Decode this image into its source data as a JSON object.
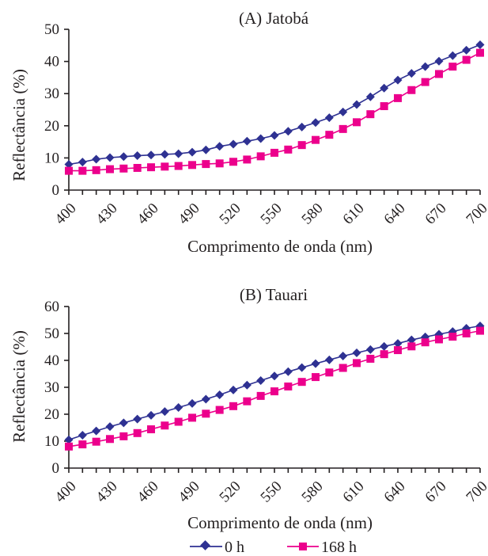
{
  "chart_data": [
    {
      "type": "line",
      "title": "(A) Jatobá",
      "xlabel": "Comprimento de onda (nm)",
      "ylabel": "Reflectância (%)",
      "xlim": [
        400,
        700
      ],
      "ylim": [
        0,
        50
      ],
      "xticks": [
        400,
        430,
        460,
        490,
        520,
        550,
        580,
        610,
        640,
        670,
        700
      ],
      "yticks": [
        0,
        10,
        20,
        30,
        40,
        50
      ],
      "grid": false,
      "x": [
        400,
        410,
        420,
        430,
        440,
        450,
        460,
        470,
        480,
        490,
        500,
        510,
        520,
        530,
        540,
        550,
        560,
        570,
        580,
        590,
        600,
        610,
        620,
        630,
        640,
        650,
        660,
        670,
        680,
        690,
        700
      ],
      "series": [
        {
          "name": "0 h",
          "color": "#2e3192",
          "marker": "diamond",
          "values": [
            8.0,
            8.7,
            9.6,
            10.1,
            10.4,
            10.7,
            10.9,
            11.1,
            11.3,
            11.8,
            12.5,
            13.6,
            14.3,
            15.2,
            16.0,
            17.0,
            18.3,
            19.6,
            21.0,
            22.5,
            24.3,
            26.6,
            29.0,
            31.7,
            34.2,
            36.3,
            38.4,
            40.1,
            41.8,
            43.5,
            45.2
          ]
        },
        {
          "name": "168 h",
          "color": "#ec008c",
          "marker": "square",
          "values": [
            6.0,
            6.0,
            6.2,
            6.5,
            6.7,
            6.9,
            7.1,
            7.3,
            7.5,
            7.8,
            8.1,
            8.3,
            8.8,
            9.5,
            10.5,
            11.6,
            12.6,
            14.0,
            15.6,
            17.2,
            19.0,
            21.1,
            23.6,
            26.1,
            28.6,
            31.1,
            33.6,
            36.1,
            38.4,
            40.5,
            42.7
          ]
        }
      ]
    },
    {
      "type": "line",
      "title": "(B) Tauari",
      "xlabel": "Comprimento de onda (nm)",
      "ylabel": "Reflectância (%)",
      "xlim": [
        400,
        700
      ],
      "ylim": [
        0,
        60
      ],
      "xticks": [
        400,
        430,
        460,
        490,
        520,
        550,
        580,
        610,
        640,
        670,
        700
      ],
      "yticks": [
        0,
        10,
        20,
        30,
        40,
        50,
        60
      ],
      "grid": false,
      "x": [
        400,
        410,
        420,
        430,
        440,
        450,
        460,
        470,
        480,
        490,
        500,
        510,
        520,
        530,
        540,
        550,
        560,
        570,
        580,
        590,
        600,
        610,
        620,
        630,
        640,
        650,
        660,
        670,
        680,
        690,
        700
      ],
      "series": [
        {
          "name": "0 h",
          "color": "#2e3192",
          "marker": "diamond",
          "values": [
            10.5,
            12.2,
            13.8,
            15.4,
            16.8,
            18.2,
            19.6,
            21.0,
            22.5,
            24.0,
            25.6,
            27.2,
            29.0,
            30.8,
            32.5,
            34.2,
            35.8,
            37.3,
            38.8,
            40.2,
            41.6,
            42.8,
            44.0,
            45.2,
            46.3,
            47.6,
            48.7,
            49.7,
            50.7,
            51.9,
            52.8
          ]
        },
        {
          "name": "168 h",
          "color": "#ec008c",
          "marker": "square",
          "values": [
            8.0,
            8.8,
            9.8,
            10.8,
            11.8,
            13.0,
            14.4,
            15.8,
            17.2,
            18.7,
            20.2,
            21.6,
            23.0,
            24.8,
            26.8,
            28.5,
            30.3,
            32.0,
            33.8,
            35.5,
            37.2,
            39.0,
            40.6,
            42.3,
            43.8,
            45.2,
            46.7,
            47.8,
            48.8,
            50.0,
            51.0
          ]
        }
      ]
    }
  ],
  "legend": {
    "placement": "bottom-center",
    "items": [
      {
        "label": "0 h",
        "color": "#2e3192",
        "marker": "diamond"
      },
      {
        "label": "168 h",
        "color": "#ec008c",
        "marker": "square"
      }
    ]
  }
}
